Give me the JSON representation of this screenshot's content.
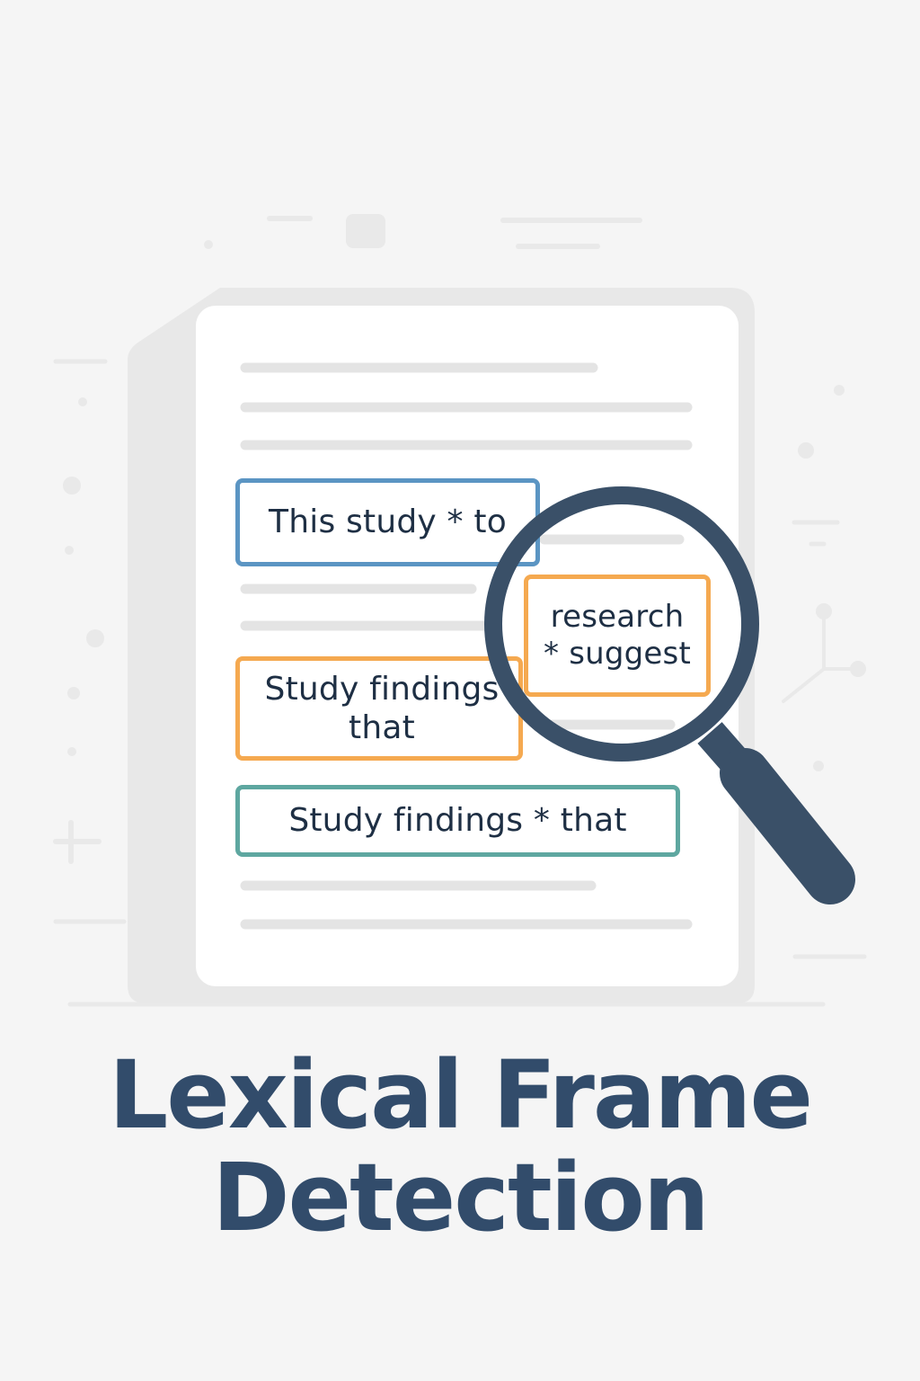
{
  "colors": {
    "background": "#f5f5f5",
    "page": "#ffffff",
    "page_back": "#e8e8e8",
    "text_line": "#e4e4e4",
    "blue_frame": "#5b95c3",
    "orange_frame": "#f5a950",
    "teal_frame": "#5ea7a0",
    "magnifier": "#3a5068",
    "title_text": "#324c6b"
  },
  "frames": [
    {
      "text": "This study * to",
      "color": "blue"
    },
    {
      "text": "Study findings that",
      "lines": [
        "Study findings",
        "that"
      ],
      "color": "orange"
    },
    {
      "text": "Study findings * that",
      "color": "teal"
    },
    {
      "text": "research * suggest",
      "lines": [
        "research",
        "* suggest"
      ],
      "color": "orange",
      "magnified": true
    }
  ],
  "icons": {
    "document": "document-icon",
    "magnifier": "magnifying-glass-icon"
  },
  "title": {
    "line1": "Lexical Frame",
    "line2": "Detection"
  }
}
